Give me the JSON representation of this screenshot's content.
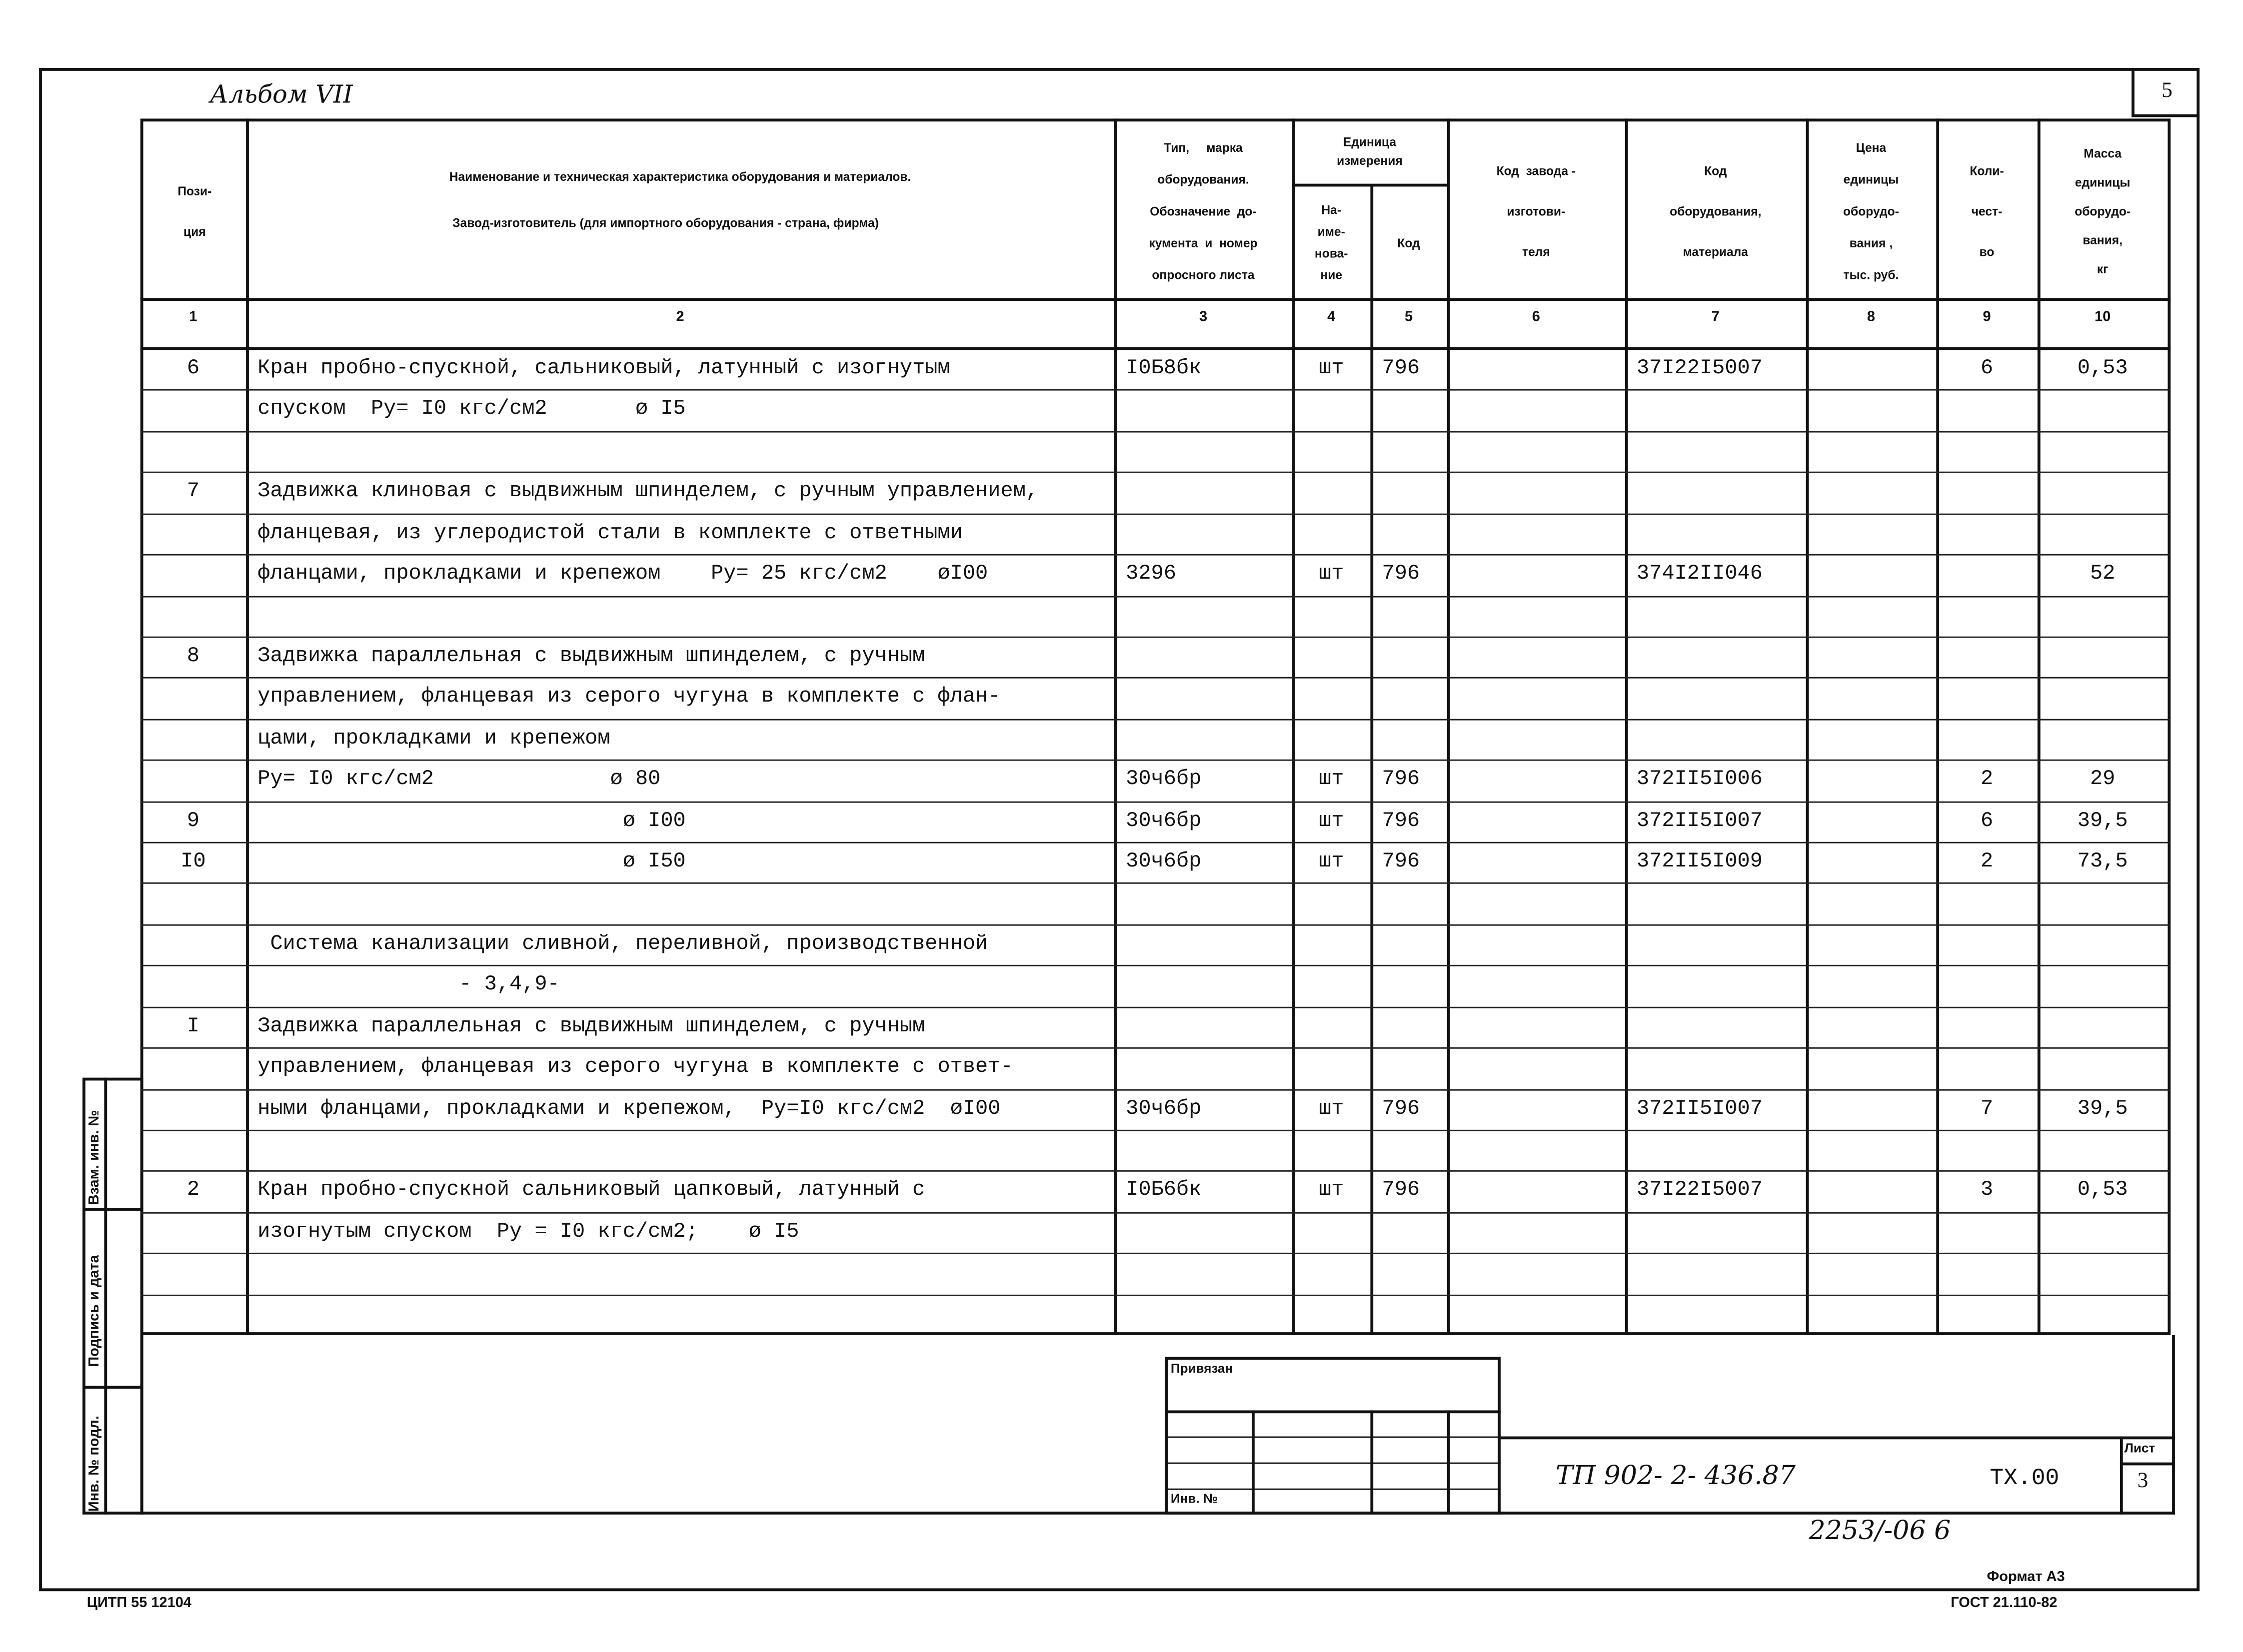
{
  "album": "Альбом VII",
  "page_number": "5",
  "header": {
    "col1": "Пози-\nция",
    "col2_line1": "Наименование и техническая характеристика  оборудования и материалов.",
    "col2_line2": "Завод-изготовитель  (для импортного оборудования -  страна, фирма)",
    "col3": "Тип,     марка\nоборудования.\nОбозначение  до-\nкумента  и  номер\nопросного листа",
    "col45": "Единица\nизмерения",
    "col4": "На-\nиме-\nнова-\nние",
    "col5": "Код",
    "col6": "Код  завода -\nизготови-\nтеля",
    "col7": "Код\nоборудования,\nматериала",
    "col8": "Цена\nединицы\nоборудо-\nвания ,\nтыс. руб.",
    "col9": "Коли-\nчест-\nво",
    "col10": "Масса\nединицы\nоборудо-\nвания,\nкг"
  },
  "column_numbers": [
    "1",
    "2",
    "3",
    "4",
    "5",
    "6",
    "7",
    "8",
    "9",
    "10"
  ],
  "rows": [
    {
      "pos": "6",
      "name": "Кран пробно-спускной, сальниковый, латунный с изогнутым",
      "type": "I0Б8бк",
      "unit": "шт",
      "code": "796",
      "equip": "37I22I5007",
      "qty": "6",
      "mass": "0,53"
    },
    {
      "name": "спуском  Ру= I0 кгс/см2       ø I5"
    },
    {},
    {
      "pos": "7",
      "name": "Задвижка клиновая с выдвижным шпинделем, с ручным управлением,"
    },
    {
      "name": "фланцевая, из углеродистой стали в комплекте с ответными"
    },
    {
      "name": "фланцами, прокладками и крепежом    Ру= 25 кгс/см2    øI00",
      "type": "3296",
      "unit": "шт",
      "code": "796",
      "equip": "374I2II046",
      "mass": "52"
    },
    {},
    {
      "pos": "8",
      "name": "Задвижка параллельная с выдвижным шпинделем, с ручным"
    },
    {
      "name": "управлением, фланцевая из серого чугуна в комплекте с флан-"
    },
    {
      "name": "цами, прокладками и крепежом"
    },
    {
      "name": "Ру= I0 кгс/см2              ø 80",
      "type": "30ч6бр",
      "unit": "шт",
      "code": "796",
      "equip": "372II5I006",
      "qty": "2",
      "mass": "29"
    },
    {
      "pos": "9",
      "name": "                             ø I00",
      "type": "30ч6бр",
      "unit": "шт",
      "code": "796",
      "equip": "372II5I007",
      "qty": "6",
      "mass": "39,5"
    },
    {
      "pos": "I0",
      "name": "                             ø I50",
      "type": "30ч6бр",
      "unit": "шт",
      "code": "796",
      "equip": "372II5I009",
      "qty": "2",
      "mass": "73,5"
    },
    {},
    {
      "name": " Система канализации сливной, переливной, производственной"
    },
    {
      "name": "                - 3,4,9-"
    },
    {
      "pos": "I",
      "name": "Задвижка параллельная с выдвижным шпинделем, с ручным"
    },
    {
      "name": "управлением, фланцевая из серого чугуна в комплекте с ответ-"
    },
    {
      "name": "ными фланцами, прокладками и крепежом,  Ру=I0 кгс/см2  øI00",
      "type": "30ч6бр",
      "unit": "шт",
      "code": "796",
      "equip": "372II5I007",
      "qty": "7",
      "mass": "39,5"
    },
    {},
    {
      "pos": "2",
      "name": "Кран пробно-спускной сальниковый цапковый, латунный с",
      "type": "I0Б6бк",
      "unit": "шт",
      "code": "796",
      "equip": "37I22I5007",
      "qty": "3",
      "mass": "0,53"
    },
    {
      "name": "изогнутым спуском  Ру = I0 кгс/см2;    ø I5"
    },
    {},
    {}
  ],
  "side_labels": [
    "Взам. инв. №",
    "Подпись и дата",
    "Инв. № подл."
  ],
  "stamp": {
    "linked": "Привязан",
    "inv": "Инв. №"
  },
  "title_block": {
    "doc": "ТП 902- 2- 436.87",
    "mark": "ТХ.00",
    "sheet_label": "Лист",
    "sheet": "3"
  },
  "footer": {
    "archive": "2253/-06   6",
    "format": "Формат А3",
    "org": "ЦИТП 55 12104",
    "gost": "ГОСТ 21.110-82"
  }
}
